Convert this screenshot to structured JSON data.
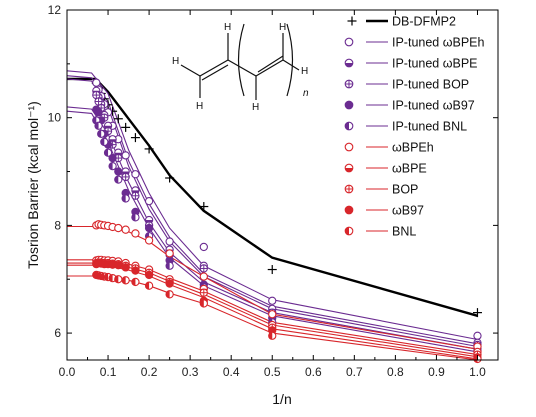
{
  "chart_data": {
    "type": "line",
    "xlabel": "1/n",
    "ylabel": "Tosrion Barrier (kcal mol⁻¹)",
    "xlim": [
      0.0,
      1.05
    ],
    "ylim": [
      5.5,
      12.0
    ],
    "x_ticks": [
      0.0,
      0.1,
      0.2,
      0.3,
      0.4,
      0.5,
      0.6,
      0.7,
      0.8,
      0.9,
      1.0
    ],
    "x_tick_labels": [
      "0.0",
      "0.1",
      "0.2",
      "0.3",
      "0.4",
      "0.5",
      "0.6",
      "0.7",
      "0.8",
      "0.9",
      "1.0"
    ],
    "y_ticks": [
      6,
      8,
      10,
      12
    ],
    "y_tick_labels": [
      "6",
      "8",
      "10",
      "12"
    ],
    "legend_position": "top-right",
    "inset_molecule": {
      "atom_label": "H",
      "subscript_label": "n"
    },
    "points_x": [
      0.0714,
      0.0769,
      0.0833,
      0.0909,
      0.1,
      0.1111,
      0.125,
      0.1429,
      0.1667,
      0.2,
      0.25,
      0.3333,
      0.5,
      1.0
    ],
    "series": [
      {
        "name": "DB-DFMP2",
        "group": "reference",
        "style": "line-plus",
        "color": "#000000",
        "x": [
          0.0,
          0.0714,
          0.0769,
          0.0833,
          0.0909,
          0.1,
          0.1111,
          0.125,
          0.1429,
          0.1667,
          0.2,
          0.25,
          0.3333,
          0.5,
          1.0
        ],
        "values": [
          10.72,
          10.64,
          10.55,
          10.45,
          10.35,
          10.24,
          10.12,
          9.98,
          9.82,
          9.63,
          9.42,
          8.88,
          8.35,
          7.18,
          6.38
        ],
        "line": [
          [
            0.0,
            10.72
          ],
          [
            0.07,
            10.72
          ],
          [
            0.1,
            10.48
          ],
          [
            0.15,
            9.98
          ],
          [
            0.2,
            9.48
          ],
          [
            0.25,
            8.93
          ],
          [
            0.333,
            8.27
          ],
          [
            0.5,
            7.4
          ],
          [
            1.0,
            6.32
          ]
        ]
      },
      {
        "name": "IP-tuned ωBPEh",
        "group": "ip",
        "marker": "open",
        "color": "#6b2c91",
        "values": [
          10.65,
          10.52,
          10.4,
          10.25,
          10.1,
          9.85,
          9.6,
          9.3,
          8.95,
          8.45,
          7.7,
          7.6,
          6.6,
          5.95
        ],
        "line": [
          [
            0.0,
            10.87
          ],
          [
            0.06,
            10.83
          ],
          [
            0.1,
            10.45
          ],
          [
            0.15,
            9.4
          ],
          [
            0.2,
            8.6
          ],
          [
            0.25,
            7.95
          ],
          [
            0.333,
            7.25
          ],
          [
            0.5,
            6.62
          ],
          [
            1.0,
            5.88
          ]
        ]
      },
      {
        "name": "IP-tuned ωBPE",
        "group": "ip",
        "marker": "bottom-half",
        "color": "#6b2c91",
        "values": [
          10.5,
          10.38,
          10.25,
          10.05,
          9.85,
          9.6,
          9.35,
          9.0,
          8.65,
          8.1,
          7.55,
          7.25,
          6.45,
          5.82
        ],
        "line": [
          [
            0.0,
            10.78
          ],
          [
            0.06,
            10.74
          ],
          [
            0.1,
            10.3
          ],
          [
            0.15,
            9.2
          ],
          [
            0.2,
            8.4
          ],
          [
            0.25,
            7.78
          ],
          [
            0.333,
            7.1
          ],
          [
            0.5,
            6.5
          ],
          [
            1.0,
            5.8
          ]
        ]
      },
      {
        "name": "IP-tuned BOP",
        "group": "ip",
        "marker": "cross",
        "color": "#6b2c91",
        "values": [
          10.42,
          10.3,
          10.18,
          10.0,
          9.75,
          9.5,
          9.25,
          8.9,
          8.55,
          8.0,
          7.45,
          7.2,
          6.38,
          5.78
        ],
        "line": [
          [
            0.0,
            10.72
          ],
          [
            0.06,
            10.68
          ],
          [
            0.1,
            10.2
          ],
          [
            0.15,
            9.1
          ],
          [
            0.2,
            8.3
          ],
          [
            0.25,
            7.7
          ],
          [
            0.333,
            7.05
          ],
          [
            0.5,
            6.45
          ],
          [
            1.0,
            5.75
          ]
        ]
      },
      {
        "name": "IP-tuned ωB97",
        "group": "ip",
        "marker": "filled",
        "color": "#6b2c91",
        "values": [
          10.15,
          10.1,
          9.95,
          9.7,
          9.5,
          9.25,
          9.0,
          8.6,
          8.25,
          7.95,
          7.35,
          6.9,
          6.28,
          5.72
        ],
        "line": [
          [
            0.0,
            10.2
          ],
          [
            0.06,
            10.16
          ],
          [
            0.1,
            9.7
          ],
          [
            0.15,
            8.8
          ],
          [
            0.2,
            8.05
          ],
          [
            0.25,
            7.5
          ],
          [
            0.333,
            6.95
          ],
          [
            0.5,
            6.38
          ],
          [
            1.0,
            5.7
          ]
        ]
      },
      {
        "name": "IP-tuned BNL",
        "group": "ip",
        "marker": "left-half",
        "color": "#6b2c91",
        "values": [
          9.95,
          9.85,
          9.7,
          9.55,
          9.35,
          9.1,
          8.85,
          8.5,
          8.15,
          7.8,
          7.25,
          6.85,
          6.2,
          5.68
        ],
        "line": [
          [
            0.0,
            10.12
          ],
          [
            0.06,
            10.08
          ],
          [
            0.1,
            9.55
          ],
          [
            0.15,
            8.65
          ],
          [
            0.2,
            7.95
          ],
          [
            0.25,
            7.4
          ],
          [
            0.333,
            6.88
          ],
          [
            0.5,
            6.32
          ],
          [
            1.0,
            5.65
          ]
        ]
      },
      {
        "name": "ωBPEh",
        "group": "plain",
        "marker": "open",
        "color": "#d8262b",
        "values": [
          8.0,
          8.02,
          8.01,
          8.0,
          7.99,
          7.97,
          7.95,
          7.92,
          7.85,
          7.72,
          7.48,
          7.05,
          6.35,
          5.75
        ],
        "line": [
          [
            0.0,
            7.98
          ],
          [
            0.07,
            7.98
          ],
          [
            0.1,
            7.97
          ],
          [
            0.15,
            7.88
          ],
          [
            0.2,
            7.7
          ],
          [
            0.25,
            7.42
          ],
          [
            0.333,
            7.05
          ],
          [
            0.5,
            6.35
          ],
          [
            1.0,
            5.7
          ]
        ]
      },
      {
        "name": "ωBPE",
        "group": "plain",
        "marker": "bottom-half",
        "color": "#d8262b",
        "values": [
          7.35,
          7.36,
          7.36,
          7.35,
          7.35,
          7.34,
          7.33,
          7.3,
          7.25,
          7.18,
          7.0,
          6.82,
          6.15,
          5.65
        ],
        "line": [
          [
            0.0,
            7.36
          ],
          [
            0.07,
            7.36
          ],
          [
            0.1,
            7.35
          ],
          [
            0.15,
            7.28
          ],
          [
            0.2,
            7.18
          ],
          [
            0.25,
            7.02
          ],
          [
            0.333,
            6.78
          ],
          [
            0.5,
            6.2
          ],
          [
            1.0,
            5.6
          ]
        ]
      },
      {
        "name": "BOP",
        "group": "plain",
        "marker": "cross",
        "color": "#d8262b",
        "values": [
          7.3,
          7.31,
          7.31,
          7.3,
          7.3,
          7.29,
          7.28,
          7.25,
          7.2,
          7.12,
          6.95,
          6.75,
          6.1,
          5.6
        ],
        "line": [
          [
            0.0,
            7.3
          ],
          [
            0.07,
            7.3
          ],
          [
            0.1,
            7.29
          ],
          [
            0.15,
            7.22
          ],
          [
            0.2,
            7.12
          ],
          [
            0.25,
            6.96
          ],
          [
            0.333,
            6.72
          ],
          [
            0.5,
            6.15
          ],
          [
            1.0,
            5.56
          ]
        ]
      },
      {
        "name": "ωB97",
        "group": "plain",
        "marker": "filled",
        "color": "#d8262b",
        "values": [
          7.28,
          7.3,
          7.29,
          7.28,
          7.28,
          7.27,
          7.26,
          7.22,
          7.16,
          7.08,
          6.92,
          6.6,
          6.05,
          5.55
        ],
        "line": [
          [
            0.0,
            7.26
          ],
          [
            0.07,
            7.26
          ],
          [
            0.1,
            7.25
          ],
          [
            0.15,
            7.17
          ],
          [
            0.2,
            7.06
          ],
          [
            0.25,
            6.9
          ],
          [
            0.333,
            6.66
          ],
          [
            0.5,
            6.08
          ],
          [
            1.0,
            5.52
          ]
        ]
      },
      {
        "name": "BNL",
        "group": "plain",
        "marker": "left-half",
        "color": "#d8262b",
        "values": [
          7.08,
          7.07,
          7.06,
          7.05,
          7.04,
          7.02,
          7.0,
          6.98,
          6.95,
          6.88,
          6.72,
          6.55,
          5.95,
          5.52
        ],
        "line": [
          [
            0.0,
            7.06
          ],
          [
            0.07,
            7.06
          ],
          [
            0.1,
            7.05
          ],
          [
            0.15,
            6.98
          ],
          [
            0.2,
            6.88
          ],
          [
            0.25,
            6.74
          ],
          [
            0.333,
            6.55
          ],
          [
            0.5,
            6.0
          ],
          [
            1.0,
            5.5
          ]
        ]
      }
    ]
  }
}
